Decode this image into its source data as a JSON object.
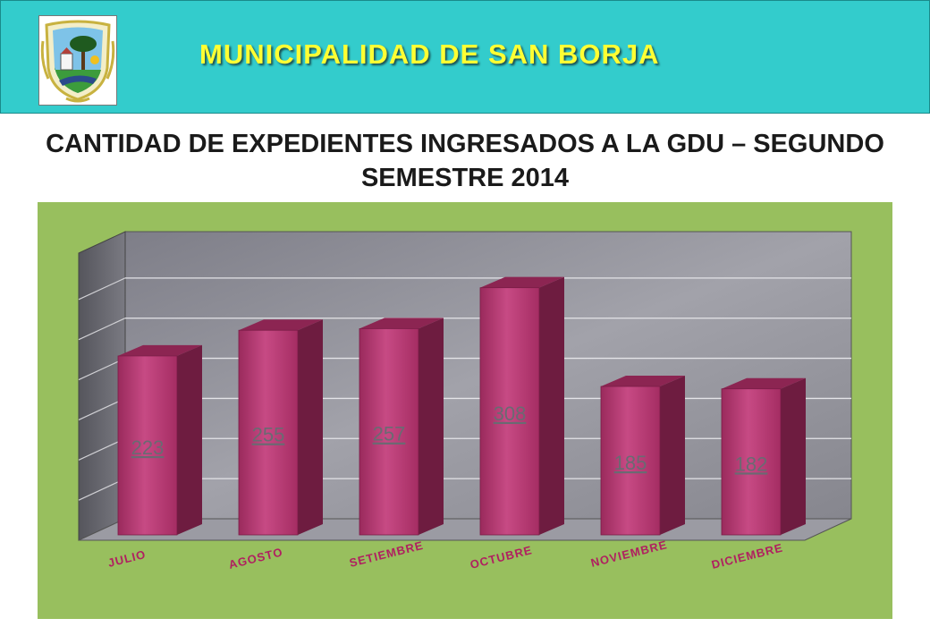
{
  "header": {
    "title": "MUNICIPALIDAD DE SAN BORJA"
  },
  "colors": {
    "header_bg": "#33cccc",
    "header_title": "#ffff33",
    "panel_bg": "#98bf5e",
    "bar_front": "#b8336e",
    "bar_side": "#6e1c40",
    "bar_top": "#8c2552",
    "category_label": "#b02060",
    "wall": "#8e8e96"
  },
  "chart_data": {
    "type": "bar",
    "title": "CANTIDAD DE EXPEDIENTES INGRESADOS A LA GDU – SEGUNDO SEMESTRE 2014",
    "categories": [
      "JULIO",
      "AGOSTO",
      "SETIEMBRE",
      "OCTUBRE",
      "NOVIEMBRE",
      "DICIEMBRE"
    ],
    "values": [
      223,
      255,
      257,
      308,
      185,
      182
    ],
    "data_labels": [
      "223",
      "255",
      "257",
      "308",
      "185",
      "182"
    ],
    "ylim": [
      0,
      350
    ],
    "grid": true,
    "legend": "none",
    "style": "3d"
  }
}
